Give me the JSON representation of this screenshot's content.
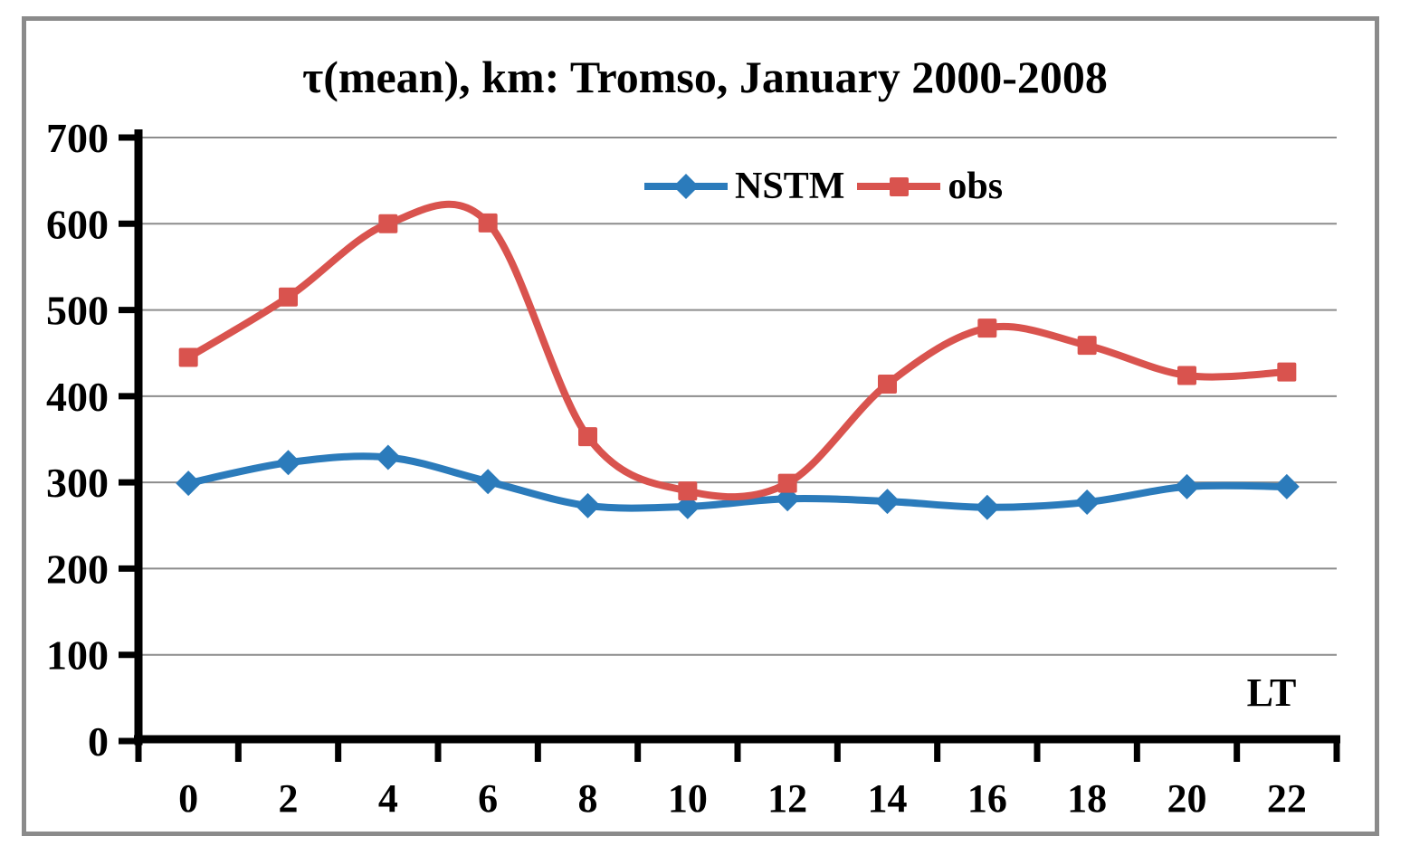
{
  "colors": {
    "frame_border": "#8B8B8B",
    "gridline": "#8C8C8C",
    "axis": "#000000",
    "text": "#000000",
    "background": "#FFFFFF"
  },
  "chart_data": {
    "type": "line",
    "title": "τ(mean), km: Tromso, January 2000-2008",
    "x_axis_label": "LT",
    "xlabel": "LT",
    "ylabel": "",
    "categories": [
      "0",
      "2",
      "4",
      "6",
      "8",
      "10",
      "12",
      "14",
      "16",
      "18",
      "20",
      "22"
    ],
    "y_ticks": [
      0,
      100,
      200,
      300,
      400,
      500,
      600,
      700
    ],
    "ylim": [
      0,
      700
    ],
    "grid": true,
    "smooth_lines": true,
    "legend_position": "top-center-inside",
    "series": [
      {
        "name": "NSTM",
        "color": "#2B7BBB",
        "marker": "diamond",
        "values": [
          299,
          323,
          329,
          301,
          273,
          272,
          281,
          278,
          271,
          277,
          295,
          295
        ]
      },
      {
        "name": "obs",
        "color": "#D9534E",
        "marker": "square",
        "values": [
          445,
          515,
          600,
          601,
          353,
          290,
          299,
          414,
          479,
          459,
          424,
          428
        ]
      }
    ]
  }
}
